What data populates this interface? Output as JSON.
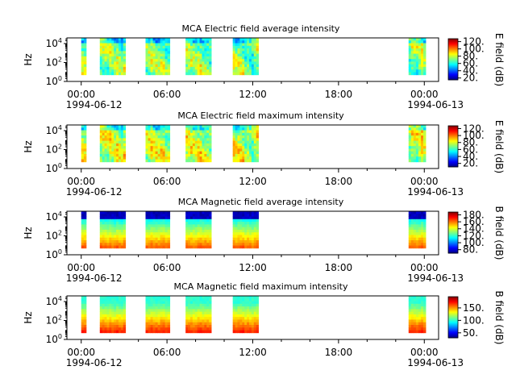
{
  "x_ticks": {
    "labels": [
      "00:00",
      "06:00",
      "12:00",
      "18:00",
      "00:00"
    ],
    "hours": [
      0,
      6,
      12,
      18,
      24
    ],
    "date_start": "1994-06-12",
    "date_end": "1994-06-13",
    "range_hours": [
      -1,
      25
    ]
  },
  "y_axis": {
    "label": "Hz",
    "scale": "log",
    "ticks": [
      "10^0",
      "10^2",
      "10^4"
    ],
    "range_exp": [
      0,
      4.6
    ]
  },
  "colormap": "jet",
  "segments_hours": [
    [
      0.0,
      0.35
    ],
    [
      1.3,
      3.1
    ],
    [
      4.5,
      6.2
    ],
    [
      7.3,
      9.1
    ],
    [
      10.6,
      12.4
    ],
    [
      22.9,
      24.1
    ]
  ],
  "chart_data": [
    {
      "type": "heatmap",
      "title": "MCA  Electric field average intensity",
      "colorbar_label": "E field (dB)",
      "colorbar_ticks": [
        20,
        40,
        60,
        80,
        100,
        120
      ],
      "colorbar_tick_labels": [
        "20.",
        "40.",
        "60.",
        "80.",
        "100.",
        "120."
      ],
      "color_range": [
        15,
        128
      ],
      "freq_exp_range": [
        0.7,
        4.6
      ],
      "pattern": "electric-avg"
    },
    {
      "type": "heatmap",
      "title": "MCA  Electric field maximum intensity",
      "colorbar_label": "E field (dB)",
      "colorbar_ticks": [
        20,
        40,
        60,
        80,
        100,
        120
      ],
      "colorbar_tick_labels": [
        "20.",
        "40.",
        "60.",
        "80.",
        "100.",
        "120."
      ],
      "color_range": [
        10,
        128
      ],
      "freq_exp_range": [
        0.7,
        4.6
      ],
      "pattern": "electric-max"
    },
    {
      "type": "heatmap",
      "title": "MCA  Magnetic field average intensity",
      "colorbar_label": "B field (dB)",
      "colorbar_ticks": [
        80,
        100,
        120,
        140,
        160,
        180
      ],
      "colorbar_tick_labels": [
        "80.",
        "100.",
        "120.",
        "140.",
        "160.",
        "180."
      ],
      "color_range": [
        70,
        188
      ],
      "freq_exp_range": [
        0.7,
        4.6
      ],
      "pattern": "magnetic-avg"
    },
    {
      "type": "heatmap",
      "title": "MCA  Magnetic field maximum intensity",
      "colorbar_label": "B field (dB)",
      "colorbar_ticks": [
        50,
        100,
        150
      ],
      "colorbar_tick_labels": [
        "50.",
        "100.",
        "150."
      ],
      "color_range": [
        30,
        195
      ],
      "freq_exp_range": [
        0.7,
        4.6
      ],
      "pattern": "magnetic-max"
    }
  ]
}
